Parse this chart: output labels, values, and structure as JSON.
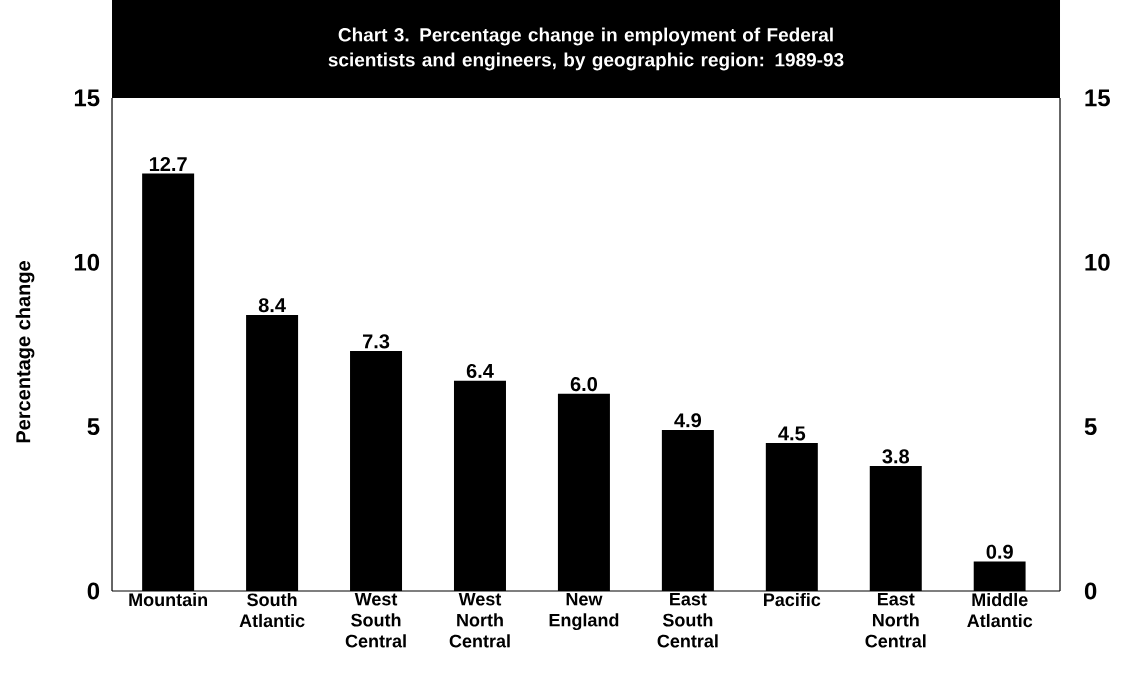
{
  "chart_data": {
    "type": "bar",
    "title": "Chart 3. Percentage change in employment  of Federal scientists and engineers, by geographic region: 1989-93",
    "ylabel": "Percentage change",
    "categories": [
      "Mountain",
      "South Atlantic",
      "West South Central",
      "West North Central",
      "New England",
      "East South Central",
      "Pacific",
      "East North Central",
      "Middle Atlantic"
    ],
    "values": [
      12.7,
      8.4,
      7.3,
      6.4,
      6.0,
      4.9,
      4.5,
      3.8,
      0.9
    ],
    "color": "#000000",
    "ylim": [
      0,
      15
    ],
    "yticks": [
      0,
      5,
      10,
      15
    ],
    "y2lim": [
      0,
      15
    ],
    "y2ticks": [
      0,
      5,
      10,
      15
    ],
    "value_labels": [
      "12.7",
      "8.4",
      "7.3",
      "6.4",
      "6.0",
      "4.9",
      "4.5",
      "3.8",
      "0.9"
    ],
    "grid": false
  }
}
